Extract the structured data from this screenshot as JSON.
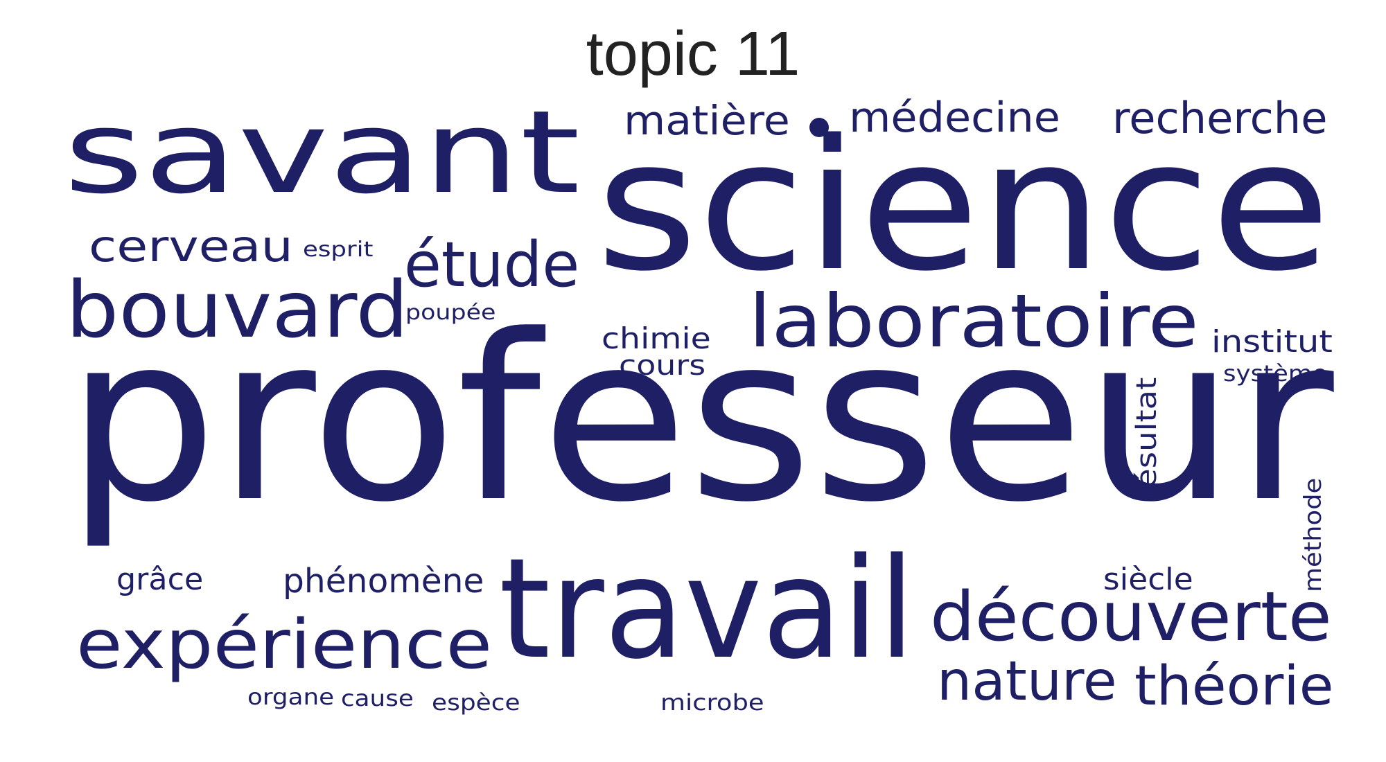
{
  "title": "topic 11",
  "word_color": "#1f1f66",
  "words": [
    {
      "text": "professeur"
    },
    {
      "text": "science"
    },
    {
      "text": "savant"
    },
    {
      "text": "travail"
    },
    {
      "text": "laboratoire"
    },
    {
      "text": "bouvard"
    },
    {
      "text": "découverte"
    },
    {
      "text": "expérience"
    },
    {
      "text": "étude"
    },
    {
      "text": "théorie"
    },
    {
      "text": "nature"
    },
    {
      "text": "recherche"
    },
    {
      "text": "médecine"
    },
    {
      "text": "matière"
    },
    {
      "text": "cerveau"
    },
    {
      "text": "institut"
    },
    {
      "text": "chimie"
    },
    {
      "text": "phénomène"
    },
    {
      "text": "cours"
    },
    {
      "text": "siècle"
    },
    {
      "text": "grâce"
    },
    {
      "text": "résultat"
    },
    {
      "text": "système"
    },
    {
      "text": "méthode"
    },
    {
      "text": "esprit"
    },
    {
      "text": "poupée"
    },
    {
      "text": "organe"
    },
    {
      "text": "cause"
    },
    {
      "text": "espèce"
    },
    {
      "text": "microbe"
    }
  ]
}
